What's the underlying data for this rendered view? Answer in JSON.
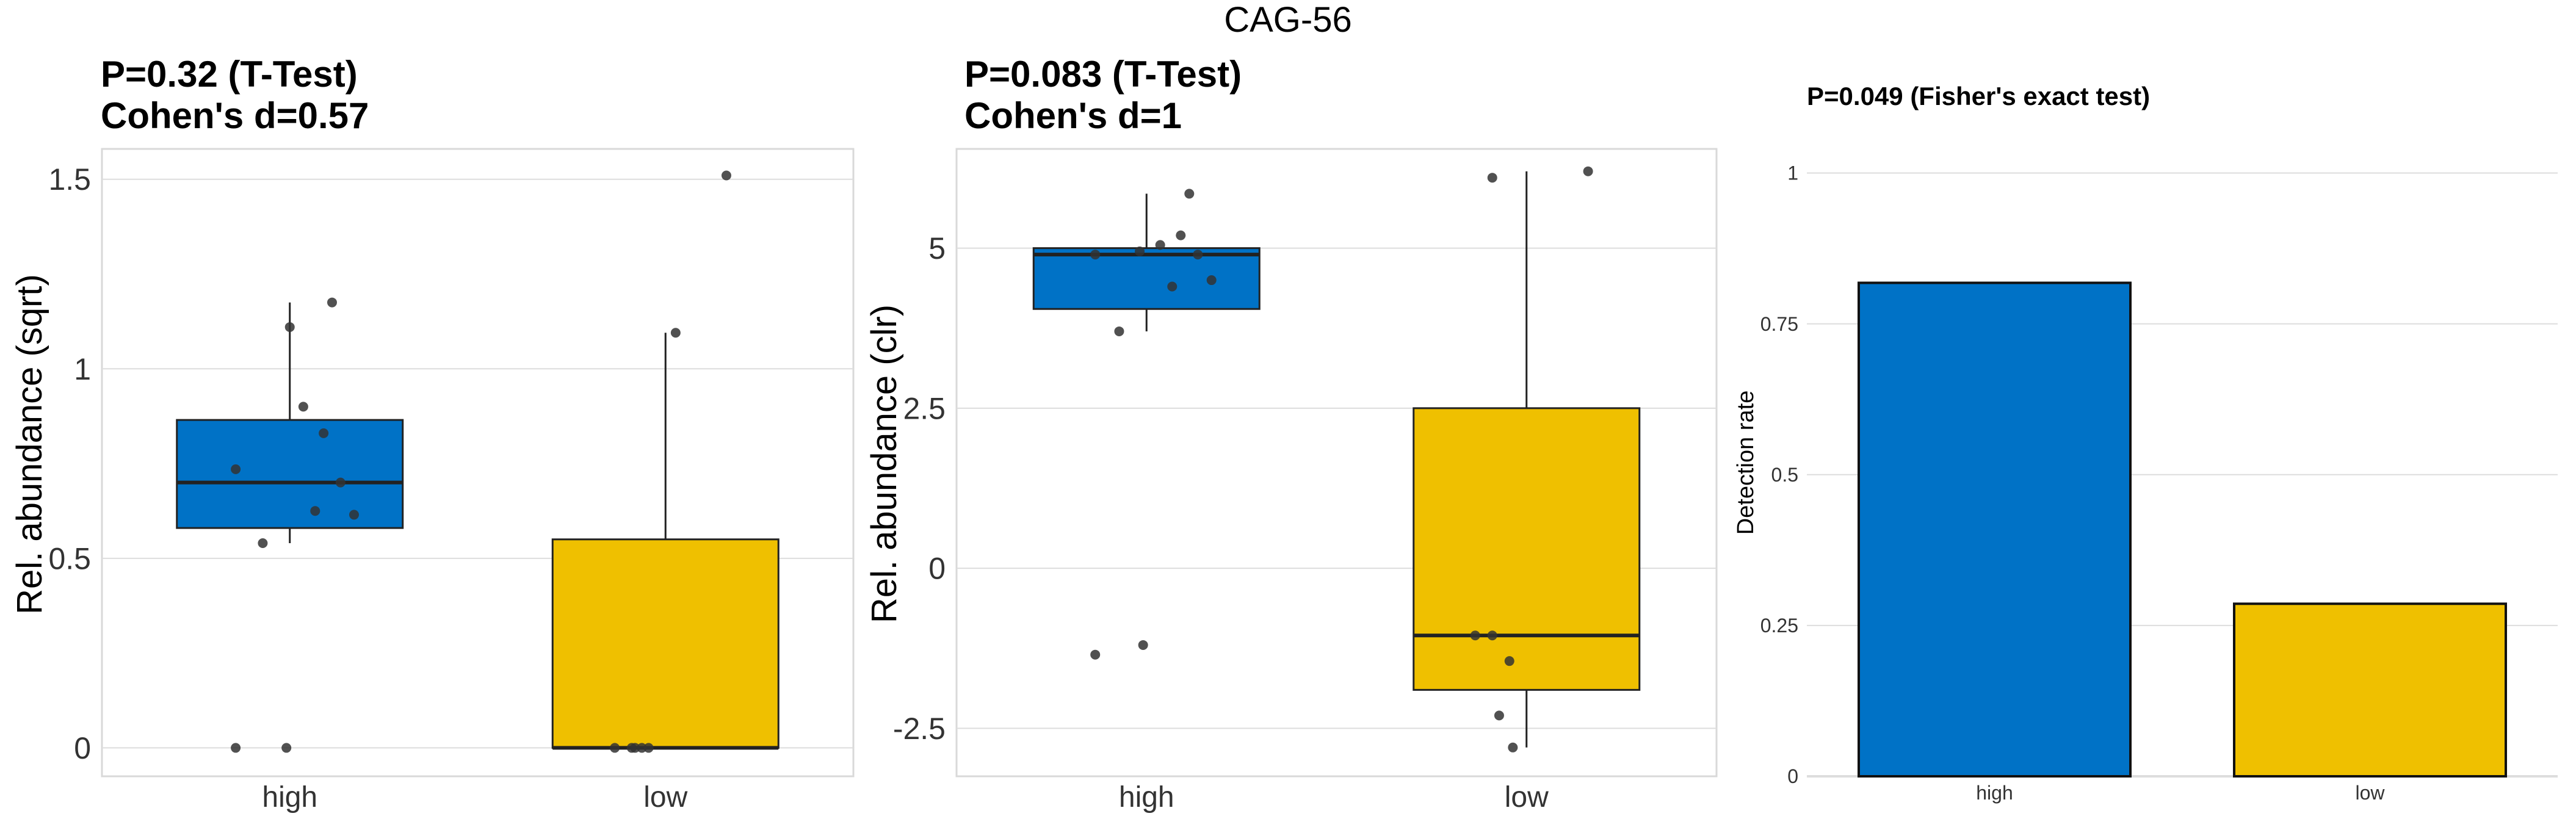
{
  "figure_title": "CAG-56",
  "colors": {
    "high": "#0072C6",
    "low": "#EFC000",
    "points": "#333333",
    "grid": "#DDDDDD",
    "panel_border": "#D9D9D9",
    "outline": "#222222"
  },
  "chart_data": [
    {
      "type": "box",
      "title_line1": "P=0.32 (T-Test)",
      "title_line2": "Cohen's d=0.57",
      "ylabel": "Rel. abundance (sqrt)",
      "categories": [
        "high",
        "low"
      ],
      "ylim": [
        -0.075,
        1.58
      ],
      "yticks": [
        0,
        0.5,
        1,
        1.5
      ],
      "ytick_labels": [
        "0",
        "0.5",
        "1",
        "1.5"
      ],
      "boxes": [
        {
          "group": "high",
          "whisker_low": 0.54,
          "q1": 0.58,
          "median": 0.7,
          "q3": 0.865,
          "whisker_high": 1.175
        },
        {
          "group": "low",
          "whisker_low": 0.0,
          "q1": 0.0,
          "median": 0.0,
          "q3": 0.55,
          "whisker_high": 1.095
        }
      ],
      "points": [
        {
          "group": "high",
          "jitter": -0.16,
          "y": 0.0
        },
        {
          "group": "high",
          "jitter": -0.01,
          "y": 0.0
        },
        {
          "group": "high",
          "jitter": -0.16,
          "y": 0.735
        },
        {
          "group": "high",
          "jitter": -0.08,
          "y": 0.54
        },
        {
          "group": "high",
          "jitter": 0.0,
          "y": 1.11
        },
        {
          "group": "high",
          "jitter": 0.125,
          "y": 1.175
        },
        {
          "group": "high",
          "jitter": 0.04,
          "y": 0.9
        },
        {
          "group": "high",
          "jitter": 0.1,
          "y": 0.83
        },
        {
          "group": "high",
          "jitter": 0.15,
          "y": 0.7
        },
        {
          "group": "high",
          "jitter": 0.075,
          "y": 0.625
        },
        {
          "group": "high",
          "jitter": 0.19,
          "y": 0.615
        },
        {
          "group": "low",
          "jitter": -0.15,
          "y": 0.0
        },
        {
          "group": "low",
          "jitter": -0.1,
          "y": 0.0
        },
        {
          "group": "low",
          "jitter": -0.09,
          "y": 0.0
        },
        {
          "group": "low",
          "jitter": -0.07,
          "y": 0.0
        },
        {
          "group": "low",
          "jitter": -0.05,
          "y": 0.0
        },
        {
          "group": "low",
          "jitter": 0.03,
          "y": 1.095
        },
        {
          "group": "low",
          "jitter": 0.18,
          "y": 1.51
        }
      ]
    },
    {
      "type": "box",
      "title_line1": "P=0.083 (T-Test)",
      "title_line2": "Cohen's d=1",
      "ylabel": "Rel. abundance (clr)",
      "categories": [
        "high",
        "low"
      ],
      "ylim": [
        -3.25,
        6.55
      ],
      "yticks": [
        -2.5,
        0,
        2.5,
        5
      ],
      "ytick_labels": [
        "-2.5",
        "0",
        "2.5",
        "5"
      ],
      "boxes": [
        {
          "group": "high",
          "whisker_low": 3.7,
          "q1": 4.05,
          "median": 4.9,
          "q3": 5.0,
          "whisker_high": 5.85
        },
        {
          "group": "low",
          "whisker_low": -2.8,
          "q1": -1.9,
          "median": -1.05,
          "q3": 2.5,
          "whisker_high": 6.2
        }
      ],
      "points": [
        {
          "group": "high",
          "jitter": -0.15,
          "y": 4.9
        },
        {
          "group": "high",
          "jitter": -0.08,
          "y": 3.7
        },
        {
          "group": "high",
          "jitter": -0.15,
          "y": -1.35
        },
        {
          "group": "high",
          "jitter": -0.01,
          "y": -1.2
        },
        {
          "group": "high",
          "jitter": -0.02,
          "y": 4.95
        },
        {
          "group": "high",
          "jitter": 0.04,
          "y": 5.05
        },
        {
          "group": "high",
          "jitter": 0.075,
          "y": 4.4
        },
        {
          "group": "high",
          "jitter": 0.1,
          "y": 5.2
        },
        {
          "group": "high",
          "jitter": 0.125,
          "y": 5.85
        },
        {
          "group": "high",
          "jitter": 0.15,
          "y": 4.9
        },
        {
          "group": "high",
          "jitter": 0.19,
          "y": 4.5
        },
        {
          "group": "low",
          "jitter": -0.15,
          "y": -1.05
        },
        {
          "group": "low",
          "jitter": -0.1,
          "y": -1.05
        },
        {
          "group": "low",
          "jitter": -0.05,
          "y": -1.45
        },
        {
          "group": "low",
          "jitter": -0.08,
          "y": -2.3
        },
        {
          "group": "low",
          "jitter": -0.04,
          "y": -2.8
        },
        {
          "group": "low",
          "jitter": -0.1,
          "y": 6.1
        },
        {
          "group": "low",
          "jitter": 0.18,
          "y": 6.2
        }
      ]
    },
    {
      "type": "bar",
      "title": "P=0.049 (Fisher's exact test)",
      "ylabel": "Detection rate",
      "categories": [
        "high",
        "low"
      ],
      "values": [
        0.818,
        0.286
      ],
      "ylim": [
        0,
        1.04
      ],
      "yticks": [
        0,
        0.25,
        0.5,
        0.75,
        1
      ],
      "ytick_labels": [
        "0",
        "0.25",
        "0.5",
        "0.75",
        "1"
      ]
    }
  ]
}
